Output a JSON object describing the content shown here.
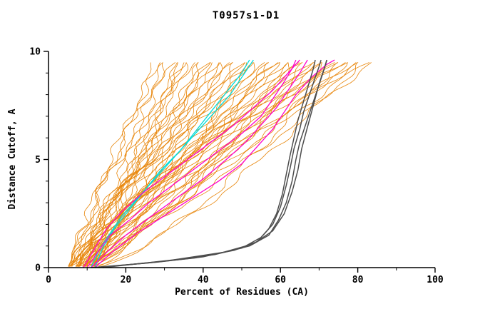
{
  "chart_data": {
    "type": "line",
    "title": "T0957s1-D1",
    "xlabel": "Percent of Residues (CA)",
    "ylabel": "Distance Cutoff, A",
    "xlim": [
      0,
      100
    ],
    "ylim": [
      0,
      10
    ],
    "x_major_ticks": [
      0,
      20,
      40,
      60,
      80,
      100
    ],
    "x_minor_step": 10,
    "y_major_ticks": [
      0,
      5,
      10
    ],
    "y_minor_step": 1,
    "y_curve_top": 9.6,
    "grid": "off",
    "legend": "none",
    "colors": {
      "models_orange": "#e8860b",
      "best_models_gray": "#4d4d4d",
      "highlight_magenta": "#ff00cc",
      "highlight_cyan": "#00dcdc",
      "axis": "#000000",
      "background": "#ffffff"
    },
    "groups": [
      {
        "name": "model-curves-orange",
        "color": "#e8860b",
        "width": 0.8,
        "param_curves": [
          [
            5,
            28,
            1.0
          ],
          [
            6,
            29,
            1.25
          ],
          [
            7,
            30,
            0.85
          ],
          [
            8,
            31,
            1.45
          ],
          [
            9,
            32,
            1.1
          ],
          [
            10,
            33,
            0.7
          ],
          [
            11,
            34,
            1.0
          ],
          [
            12,
            35,
            1.25
          ],
          [
            5,
            36,
            0.85
          ],
          [
            6,
            37,
            1.45
          ],
          [
            7,
            38,
            1.1
          ],
          [
            8,
            39,
            0.7
          ],
          [
            9,
            40,
            1.0
          ],
          [
            10,
            41,
            1.25
          ],
          [
            11,
            42,
            0.85
          ],
          [
            12,
            43,
            1.45
          ],
          [
            5,
            44,
            1.1
          ],
          [
            6,
            45,
            0.7
          ],
          [
            7,
            46,
            1.0
          ],
          [
            8,
            47,
            1.25
          ],
          [
            9,
            48,
            0.85
          ],
          [
            10,
            49,
            1.45
          ],
          [
            11,
            50,
            1.1
          ],
          [
            12,
            51,
            0.7
          ],
          [
            5,
            52,
            1.0
          ],
          [
            6,
            53,
            1.25
          ],
          [
            7,
            54,
            0.85
          ],
          [
            8,
            55,
            1.45
          ],
          [
            9,
            56,
            1.1
          ],
          [
            10,
            57,
            0.7
          ],
          [
            11,
            58,
            1.0
          ],
          [
            12,
            59,
            1.25
          ],
          [
            5,
            60,
            0.85
          ],
          [
            6,
            61,
            1.45
          ],
          [
            7,
            62,
            1.1
          ],
          [
            8,
            63,
            0.7
          ],
          [
            9,
            64,
            1.0
          ],
          [
            10,
            65,
            1.25
          ],
          [
            11,
            66,
            0.85
          ],
          [
            12,
            67,
            1.45
          ],
          [
            5,
            68,
            1.1
          ],
          [
            6,
            69,
            0.7
          ],
          [
            7,
            70,
            1.0
          ],
          [
            8,
            71,
            1.25
          ],
          [
            9,
            72,
            0.85
          ],
          [
            10,
            73,
            1.45
          ],
          [
            11,
            74,
            1.1
          ],
          [
            12,
            75,
            0.7
          ],
          [
            5,
            76,
            1.0
          ],
          [
            6,
            77,
            1.25
          ],
          [
            7,
            78,
            0.85
          ],
          [
            8,
            79,
            1.45
          ],
          [
            9,
            80,
            1.1
          ],
          [
            10,
            81,
            0.7
          ],
          [
            11,
            82,
            1.0
          ],
          [
            12,
            83,
            1.25
          ],
          [
            7,
            84,
            0.85
          ]
        ]
      },
      {
        "name": "highlight-curves-cyan",
        "color": "#00dcdc",
        "width": 1.3,
        "point_curves": [
          [
            [
              11,
              0
            ],
            [
              13,
              0.8
            ],
            [
              16,
              1.6
            ],
            [
              19,
              2.4
            ],
            [
              23,
              3.2
            ],
            [
              27,
              4.0
            ],
            [
              31,
              4.8
            ],
            [
              35,
              5.6
            ],
            [
              39,
              6.4
            ],
            [
              43,
              7.2
            ],
            [
              47,
              8.0
            ],
            [
              50,
              8.8
            ],
            [
              53,
              9.6
            ]
          ],
          [
            [
              12,
              0
            ],
            [
              14,
              0.9
            ],
            [
              17,
              1.8
            ],
            [
              21,
              2.7
            ],
            [
              25,
              3.6
            ],
            [
              29,
              4.5
            ],
            [
              34,
              5.4
            ],
            [
              38,
              6.3
            ],
            [
              42,
              7.2
            ],
            [
              46,
              8.1
            ],
            [
              50,
              9.0
            ],
            [
              52,
              9.6
            ]
          ]
        ]
      },
      {
        "name": "highlight-curves-magenta",
        "color": "#ff00cc",
        "width": 1.3,
        "point_curves": [
          [
            [
              10,
              0
            ],
            [
              13,
              0.8
            ],
            [
              16,
              1.5
            ],
            [
              21,
              2.2
            ],
            [
              26,
              3.0
            ],
            [
              32,
              3.8
            ],
            [
              38,
              4.6
            ],
            [
              44,
              5.4
            ],
            [
              50,
              6.2
            ],
            [
              55,
              7.0
            ],
            [
              58,
              7.8
            ],
            [
              61,
              8.6
            ],
            [
              63,
              9.2
            ],
            [
              64,
              9.6
            ]
          ],
          [
            [
              11,
              0
            ],
            [
              15,
              0.7
            ],
            [
              20,
              1.5
            ],
            [
              26,
              2.3
            ],
            [
              33,
              3.2
            ],
            [
              40,
              4.1
            ],
            [
              46,
              5.0
            ],
            [
              51,
              5.8
            ],
            [
              55,
              6.6
            ],
            [
              59,
              7.4
            ],
            [
              62,
              8.2
            ],
            [
              65,
              9.0
            ],
            [
              67,
              9.6
            ]
          ],
          [
            [
              9,
              0
            ],
            [
              12,
              0.9
            ],
            [
              15,
              1.8
            ],
            [
              19,
              2.6
            ],
            [
              24,
              3.4
            ],
            [
              30,
              4.2
            ],
            [
              36,
              5.0
            ],
            [
              42,
              5.8
            ],
            [
              48,
              6.6
            ],
            [
              53,
              7.4
            ],
            [
              58,
              8.2
            ],
            [
              62,
              9.0
            ],
            [
              65,
              9.6
            ]
          ],
          [
            [
              12,
              0
            ],
            [
              17,
              0.8
            ],
            [
              23,
              1.6
            ],
            [
              30,
              2.4
            ],
            [
              37,
              3.2
            ],
            [
              44,
              4.0
            ],
            [
              50,
              4.8
            ],
            [
              54,
              5.6
            ],
            [
              58,
              6.4
            ],
            [
              61,
              7.2
            ],
            [
              64,
              8.0
            ],
            [
              68,
              8.8
            ],
            [
              72,
              9.4
            ],
            [
              74,
              9.6
            ]
          ]
        ]
      },
      {
        "name": "best-model-curves-gray",
        "color": "#4d4d4d",
        "width": 1.5,
        "point_curves": [
          [
            [
              12,
              0
            ],
            [
              28,
              0.25
            ],
            [
              40,
              0.5
            ],
            [
              50,
              0.9
            ],
            [
              55,
              1.4
            ],
            [
              58,
              2.0
            ],
            [
              60,
              2.8
            ],
            [
              61.5,
              3.8
            ],
            [
              62.5,
              4.6
            ],
            [
              63.5,
              5.5
            ],
            [
              65,
              6.4
            ],
            [
              66,
              7.2
            ],
            [
              67.5,
              8.0
            ],
            [
              69,
              8.8
            ],
            [
              70,
              9.3
            ],
            [
              70.5,
              9.6
            ]
          ],
          [
            [
              13,
              0
            ],
            [
              30,
              0.3
            ],
            [
              43,
              0.6
            ],
            [
              52,
              1.0
            ],
            [
              57,
              1.5
            ],
            [
              59.5,
              2.2
            ],
            [
              61.5,
              3.0
            ],
            [
              63,
              4.0
            ],
            [
              64,
              5.0
            ],
            [
              65,
              5.8
            ],
            [
              66.5,
              6.6
            ],
            [
              68,
              7.4
            ],
            [
              69.5,
              8.2
            ],
            [
              71,
              9.0
            ],
            [
              72,
              9.6
            ]
          ],
          [
            [
              11,
              0
            ],
            [
              25,
              0.2
            ],
            [
              38,
              0.45
            ],
            [
              48,
              0.8
            ],
            [
              54,
              1.2
            ],
            [
              57,
              1.8
            ],
            [
              59,
              2.5
            ],
            [
              60.5,
              3.4
            ],
            [
              61.5,
              4.3
            ],
            [
              62.5,
              5.2
            ],
            [
              63.5,
              6.0
            ],
            [
              64.5,
              6.8
            ],
            [
              66,
              7.7
            ],
            [
              67.5,
              8.6
            ],
            [
              68.5,
              9.2
            ],
            [
              69,
              9.6
            ]
          ],
          [
            [
              14,
              0
            ],
            [
              32,
              0.35
            ],
            [
              45,
              0.7
            ],
            [
              53,
              1.1
            ],
            [
              58,
              1.7
            ],
            [
              61,
              2.5
            ],
            [
              63,
              3.5
            ],
            [
              64.5,
              4.5
            ],
            [
              65.5,
              5.5
            ],
            [
              67,
              6.5
            ],
            [
              68.5,
              7.5
            ],
            [
              70,
              8.5
            ],
            [
              71.5,
              9.3
            ],
            [
              72,
              9.6
            ]
          ]
        ]
      }
    ]
  }
}
